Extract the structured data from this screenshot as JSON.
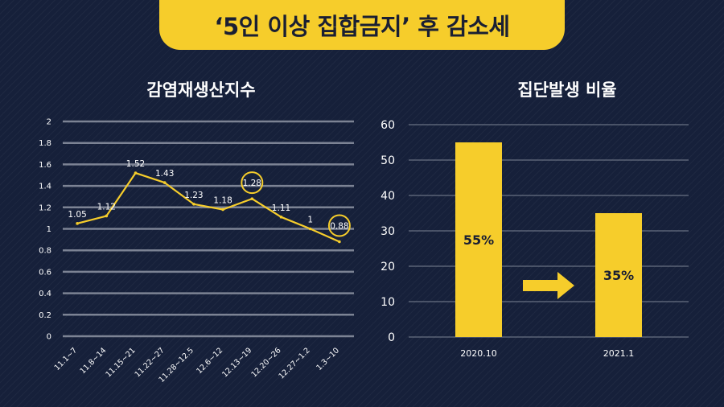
{
  "banner": {
    "title": "‘5인 이상 집합금지’ 후 감소세"
  },
  "chart_data": [
    {
      "type": "line",
      "title": "감염재생산지수",
      "categories": [
        "11.1~7",
        "11.8~14",
        "11.15~21",
        "11.22~27",
        "11.28~12.5",
        "12.6~12",
        "12.13~19",
        "12.20~26",
        "12.27~1.2",
        "1.3~10"
      ],
      "series": [
        {
          "values": [
            1.05,
            1.12,
            1.52,
            1.43,
            1.23,
            1.18,
            1.28,
            1.11,
            1,
            0.88
          ]
        }
      ],
      "data_labels": [
        "1.05",
        "1.12",
        "1.52",
        "1.43",
        "1.23",
        "1.18",
        "1.28",
        "1.11",
        "1",
        "0.88"
      ],
      "highlighted_points": [
        "12.13~19",
        "1.3~10"
      ],
      "ylim": [
        0,
        2
      ],
      "yticks": [
        "0",
        "0.2",
        "0.4",
        "0.6",
        "0.8",
        "1",
        "1.2",
        "1.4",
        "1.6",
        "1.8",
        "2"
      ],
      "grid": true,
      "line_color": "#f6cd2b"
    },
    {
      "type": "bar",
      "title": "집단발생 비율",
      "categories": [
        "2020.10",
        "2021.1"
      ],
      "values": [
        55,
        35
      ],
      "data_labels": [
        "55%",
        "35%"
      ],
      "ylim": [
        0,
        60
      ],
      "yticks": [
        "0",
        "10",
        "20",
        "30",
        "40",
        "50",
        "60"
      ],
      "grid": true,
      "bar_color": "#f6cd2b",
      "annotation": "arrow-right-icon"
    }
  ],
  "colors": {
    "background": "#16203a",
    "accent": "#f6cd2b",
    "grid": "#7c8394",
    "text": "#ffffff"
  }
}
